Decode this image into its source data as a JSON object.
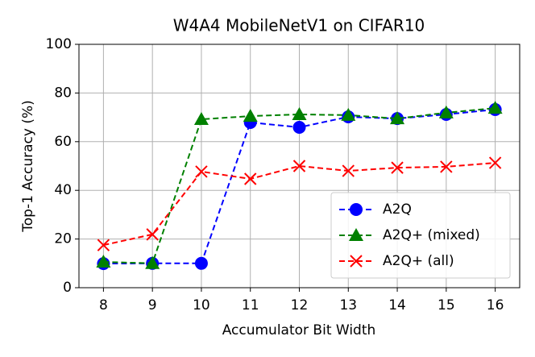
{
  "chart_data": {
    "type": "line",
    "title": "W4A4 MobileNetV1 on CIFAR10",
    "x_label": "Accumulator Bit Width",
    "y_label": "Top-1 Accuracy (%)",
    "x": [
      8,
      9,
      10,
      11,
      12,
      13,
      14,
      15,
      16
    ],
    "series": [
      {
        "name": "A2Q",
        "color": "#0000ff",
        "marker": "o",
        "values": [
          9.9,
          10,
          10,
          67.9,
          65.9,
          70.2,
          69.5,
          71.2,
          73.2
        ]
      },
      {
        "name": "A2Q+ (mixed)",
        "color": "#008000",
        "marker": "^",
        "values": [
          10.6,
          10,
          69.2,
          70.5,
          71.2,
          70.9,
          69.5,
          71.9,
          73.8
        ]
      },
      {
        "name": "A2Q+ (all)",
        "color": "#ff0000",
        "marker": "x",
        "values": [
          17.5,
          21.9,
          47.7,
          44.7,
          50,
          48,
          49.3,
          49.7,
          51.3
        ]
      }
    ],
    "xlim": [
      7.5,
      16.5
    ],
    "ylim": [
      0,
      100
    ],
    "xticks": [
      8,
      9,
      10,
      11,
      12,
      13,
      14,
      15,
      16
    ],
    "yticks": [
      0,
      20,
      40,
      60,
      80,
      100
    ],
    "grid": true,
    "legend": "lower right"
  }
}
